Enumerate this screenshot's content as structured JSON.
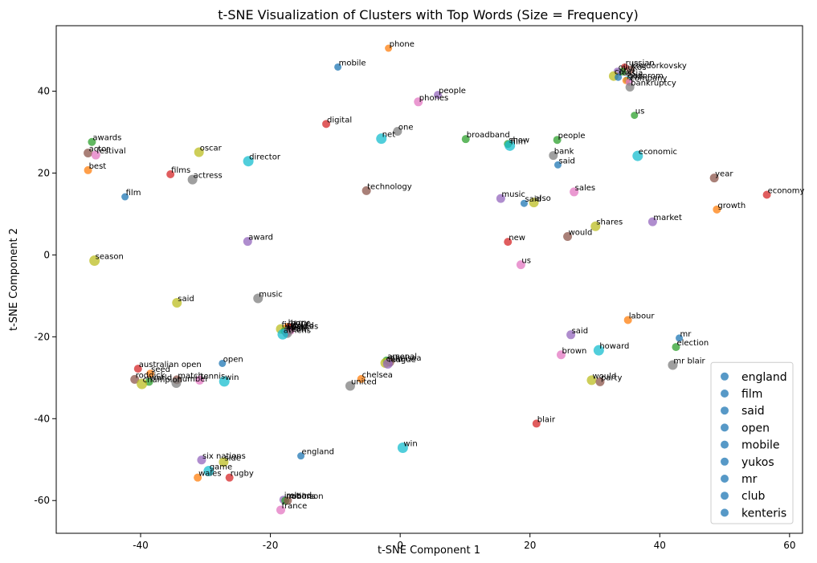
{
  "chart_data": {
    "type": "scatter",
    "title": "t-SNE Visualization of Clusters with Top Words (Size = Frequency)",
    "xlabel": "t-SNE Component 1",
    "ylabel": "t-SNE Component 2",
    "xlim": [
      -53,
      62
    ],
    "ylim": [
      -68,
      56
    ],
    "xticks": [
      -40,
      -20,
      0,
      20,
      40,
      60
    ],
    "yticks": [
      -60,
      -40,
      -20,
      0,
      20,
      40
    ],
    "legend_position": "lower-right",
    "legend": [
      "england",
      "film",
      "said",
      "open",
      "mobile",
      "yukos",
      "mr",
      "club",
      "kenteris"
    ],
    "legend_color": "#1f77b4",
    "palette": [
      "#1f77b4",
      "#ff7f0e",
      "#2ca02c",
      "#d62728",
      "#9467bd",
      "#8c564b",
      "#e377c2",
      "#7f7f7f",
      "#bcbd22",
      "#17becf"
    ],
    "points": [
      {
        "word": "phone",
        "x": -1.8,
        "y": 50.5,
        "c": 1,
        "s": 9
      },
      {
        "word": "mobile",
        "x": -9.6,
        "y": 45.9,
        "c": 0,
        "s": 9
      },
      {
        "word": "russian",
        "x": 34.6,
        "y": 45.9,
        "c": 3,
        "s": 9
      },
      {
        "word": "khodorkovsky",
        "x": 35.5,
        "y": 45.2,
        "c": 5,
        "s": 10
      },
      {
        "word": "yukos",
        "x": 34.2,
        "y": 44.8,
        "c": 2,
        "s": 10
      },
      {
        "word": "oil",
        "x": 33.5,
        "y": 44.8,
        "c": 4,
        "s": 10
      },
      {
        "word": "court",
        "x": 32.9,
        "y": 43.7,
        "c": 8,
        "s": 12
      },
      {
        "word": "russia",
        "x": 33.6,
        "y": 43.4,
        "c": 0,
        "s": 9
      },
      {
        "word": "gazprom",
        "x": 35.0,
        "y": 42.8,
        "c": 9,
        "s": 9
      },
      {
        "word": "firm",
        "x": 34.8,
        "y": 42.6,
        "c": 1,
        "s": 9
      },
      {
        "word": "company",
        "x": 35.3,
        "y": 42.2,
        "c": 6,
        "s": 9
      },
      {
        "word": "bankruptcy",
        "x": 35.4,
        "y": 41.0,
        "c": 7,
        "s": 11
      },
      {
        "word": "people",
        "x": 5.8,
        "y": 39.1,
        "c": 4,
        "s": 10
      },
      {
        "word": "phones",
        "x": 2.8,
        "y": 37.4,
        "c": 6,
        "s": 11
      },
      {
        "word": "us",
        "x": 36.1,
        "y": 34.1,
        "c": 2,
        "s": 9
      },
      {
        "word": "digital",
        "x": -11.4,
        "y": 32.0,
        "c": 3,
        "s": 10
      },
      {
        "word": "one",
        "x": -0.4,
        "y": 30.2,
        "c": 7,
        "s": 11
      },
      {
        "word": "net",
        "x": -2.9,
        "y": 28.4,
        "c": 9,
        "s": 13
      },
      {
        "word": "broadband",
        "x": 10.1,
        "y": 28.3,
        "c": 2,
        "s": 10
      },
      {
        "word": "people",
        "x": 24.2,
        "y": 28.1,
        "c": 2,
        "s": 10
      },
      {
        "word": "awards",
        "x": -47.5,
        "y": 27.6,
        "c": 2,
        "s": 10
      },
      {
        "word": "show",
        "x": 16.6,
        "y": 27.1,
        "c": 2,
        "s": 10
      },
      {
        "word": "film",
        "x": 16.9,
        "y": 26.7,
        "c": 9,
        "s": 13
      },
      {
        "word": "oscar",
        "x": -31.0,
        "y": 25.1,
        "c": 8,
        "s": 12
      },
      {
        "word": "actor",
        "x": -48.1,
        "y": 24.9,
        "c": 5,
        "s": 11
      },
      {
        "word": "festival",
        "x": -46.9,
        "y": 24.4,
        "c": 6,
        "s": 11
      },
      {
        "word": "bank",
        "x": 23.6,
        "y": 24.3,
        "c": 7,
        "s": 11
      },
      {
        "word": "economic",
        "x": 36.6,
        "y": 24.2,
        "c": 9,
        "s": 13
      },
      {
        "word": "director",
        "x": -23.4,
        "y": 22.9,
        "c": 9,
        "s": 13
      },
      {
        "word": "said",
        "x": 24.3,
        "y": 22.0,
        "c": 0,
        "s": 9
      },
      {
        "word": "best",
        "x": -48.1,
        "y": 20.7,
        "c": 1,
        "s": 10
      },
      {
        "word": "films",
        "x": -35.4,
        "y": 19.7,
        "c": 3,
        "s": 10
      },
      {
        "word": "year",
        "x": 48.4,
        "y": 18.8,
        "c": 5,
        "s": 11
      },
      {
        "word": "actress",
        "x": -32.0,
        "y": 18.4,
        "c": 7,
        "s": 12
      },
      {
        "word": "technology",
        "x": -5.2,
        "y": 15.7,
        "c": 5,
        "s": 11
      },
      {
        "word": "sales",
        "x": 26.8,
        "y": 15.4,
        "c": 6,
        "s": 11
      },
      {
        "word": "economy",
        "x": 56.5,
        "y": 14.7,
        "c": 3,
        "s": 10
      },
      {
        "word": "film",
        "x": -42.4,
        "y": 14.2,
        "c": 0,
        "s": 9
      },
      {
        "word": "music",
        "x": 15.5,
        "y": 13.8,
        "c": 4,
        "s": 11
      },
      {
        "word": "also",
        "x": 20.6,
        "y": 12.8,
        "c": 8,
        "s": 12
      },
      {
        "word": "said",
        "x": 19.1,
        "y": 12.6,
        "c": 0,
        "s": 9
      },
      {
        "word": "growth",
        "x": 48.8,
        "y": 11.1,
        "c": 1,
        "s": 10
      },
      {
        "word": "market",
        "x": 38.9,
        "y": 8.1,
        "c": 4,
        "s": 11
      },
      {
        "word": "shares",
        "x": 30.1,
        "y": 7.0,
        "c": 8,
        "s": 12
      },
      {
        "word": "would",
        "x": 25.8,
        "y": 4.5,
        "c": 5,
        "s": 11
      },
      {
        "word": "award",
        "x": -23.5,
        "y": 3.3,
        "c": 4,
        "s": 11
      },
      {
        "word": "new",
        "x": 16.6,
        "y": 3.2,
        "c": 3,
        "s": 10
      },
      {
        "word": "us",
        "x": 18.6,
        "y": -2.4,
        "c": 6,
        "s": 11
      },
      {
        "word": "season",
        "x": -47.1,
        "y": -1.4,
        "c": 8,
        "s": 13
      },
      {
        "word": "music",
        "x": -21.9,
        "y": -10.6,
        "c": 7,
        "s": 12
      },
      {
        "word": "said",
        "x": -34.4,
        "y": -11.7,
        "c": 8,
        "s": 12
      },
      {
        "word": "labour",
        "x": 35.1,
        "y": -15.9,
        "c": 1,
        "s": 10
      },
      {
        "word": "first",
        "x": -18.4,
        "y": -18.1,
        "c": 8,
        "s": 12
      },
      {
        "word": "harry",
        "x": -17.4,
        "y": -17.6,
        "c": 1,
        "s": 10
      },
      {
        "word": "hope",
        "x": -17.0,
        "y": -17.7,
        "c": 3,
        "s": 10
      },
      {
        "word": "would",
        "x": -17.1,
        "y": -18.3,
        "c": 5,
        "s": 11
      },
      {
        "word": "world",
        "x": -17.8,
        "y": -18.6,
        "c": 2,
        "s": 10
      },
      {
        "word": "time",
        "x": -17.5,
        "y": -18.9,
        "c": 4,
        "s": 11
      },
      {
        "word": "games",
        "x": -16.9,
        "y": -18.5,
        "c": 6,
        "s": 10
      },
      {
        "word": "team",
        "x": -17.4,
        "y": -19.1,
        "c": 7,
        "s": 12
      },
      {
        "word": "athens",
        "x": -18.1,
        "y": -19.4,
        "c": 9,
        "s": 13
      },
      {
        "word": "said",
        "x": 26.3,
        "y": -19.5,
        "c": 4,
        "s": 11
      },
      {
        "word": "mr",
        "x": 43.0,
        "y": -20.3,
        "c": 0,
        "s": 9
      },
      {
        "word": "election",
        "x": 42.5,
        "y": -22.5,
        "c": 2,
        "s": 10
      },
      {
        "word": "howard",
        "x": 30.6,
        "y": -23.3,
        "c": 9,
        "s": 13
      },
      {
        "word": "brown",
        "x": 24.8,
        "y": -24.4,
        "c": 6,
        "s": 11
      },
      {
        "word": "arsenal",
        "x": -2.1,
        "y": -25.8,
        "c": 2,
        "s": 10
      },
      {
        "word": "chelsea",
        "x": -1.6,
        "y": -26.2,
        "c": 5,
        "s": 11
      },
      {
        "word": "club",
        "x": -2.3,
        "y": -26.4,
        "c": 8,
        "s": 12
      },
      {
        "word": "league",
        "x": -1.9,
        "y": -26.6,
        "c": 4,
        "s": 12
      },
      {
        "word": "open",
        "x": -27.4,
        "y": -26.5,
        "c": 0,
        "s": 9
      },
      {
        "word": "mr blair",
        "x": 42.0,
        "y": -26.9,
        "c": 7,
        "s": 12
      },
      {
        "word": "australian open",
        "x": -40.4,
        "y": -27.8,
        "c": 3,
        "s": 10
      },
      {
        "word": "seed",
        "x": -38.5,
        "y": -29.0,
        "c": 1,
        "s": 10
      },
      {
        "word": "chelsea",
        "x": -6.0,
        "y": -30.3,
        "c": 1,
        "s": 10
      },
      {
        "word": "roddick",
        "x": -40.9,
        "y": -30.4,
        "c": 5,
        "s": 11
      },
      {
        "word": "match",
        "x": -34.4,
        "y": -30.5,
        "c": 5,
        "s": 11
      },
      {
        "word": "would",
        "x": 29.5,
        "y": -30.6,
        "c": 8,
        "s": 12
      },
      {
        "word": "tennis",
        "x": -30.9,
        "y": -30.6,
        "c": 6,
        "s": 11
      },
      {
        "word": "win",
        "x": -27.1,
        "y": -30.9,
        "c": 9,
        "s": 13
      },
      {
        "word": "party",
        "x": 30.8,
        "y": -31.0,
        "c": 5,
        "s": 11
      },
      {
        "word": "world",
        "x": -38.7,
        "y": -31.0,
        "c": 2,
        "s": 10
      },
      {
        "word": "number",
        "x": -34.5,
        "y": -31.3,
        "c": 7,
        "s": 12
      },
      {
        "word": "champion",
        "x": -39.8,
        "y": -31.5,
        "c": 8,
        "s": 13
      },
      {
        "word": "united",
        "x": -7.7,
        "y": -32.0,
        "c": 7,
        "s": 12
      },
      {
        "word": "blair",
        "x": 21.0,
        "y": -41.2,
        "c": 3,
        "s": 10
      },
      {
        "word": "win",
        "x": 0.4,
        "y": -47.1,
        "c": 9,
        "s": 13
      },
      {
        "word": "england",
        "x": -15.3,
        "y": -49.1,
        "c": 0,
        "s": 9
      },
      {
        "word": "six nations",
        "x": -30.6,
        "y": -50.1,
        "c": 4,
        "s": 11
      },
      {
        "word": "side",
        "x": -27.2,
        "y": -50.6,
        "c": 8,
        "s": 12
      },
      {
        "word": "game",
        "x": -29.5,
        "y": -52.8,
        "c": 9,
        "s": 13
      },
      {
        "word": "wales",
        "x": -31.2,
        "y": -54.4,
        "c": 1,
        "s": 10
      },
      {
        "word": "rugby",
        "x": -26.3,
        "y": -54.4,
        "c": 3,
        "s": 10
      },
      {
        "word": "ireland",
        "x": -18.0,
        "y": -59.8,
        "c": 4,
        "s": 10
      },
      {
        "word": "nations",
        "x": -17.7,
        "y": -60.0,
        "c": 2,
        "s": 10
      },
      {
        "word": "robinson",
        "x": -17.3,
        "y": -60.0,
        "c": 5,
        "s": 10
      },
      {
        "word": "france",
        "x": -18.4,
        "y": -62.3,
        "c": 6,
        "s": 11
      }
    ]
  }
}
